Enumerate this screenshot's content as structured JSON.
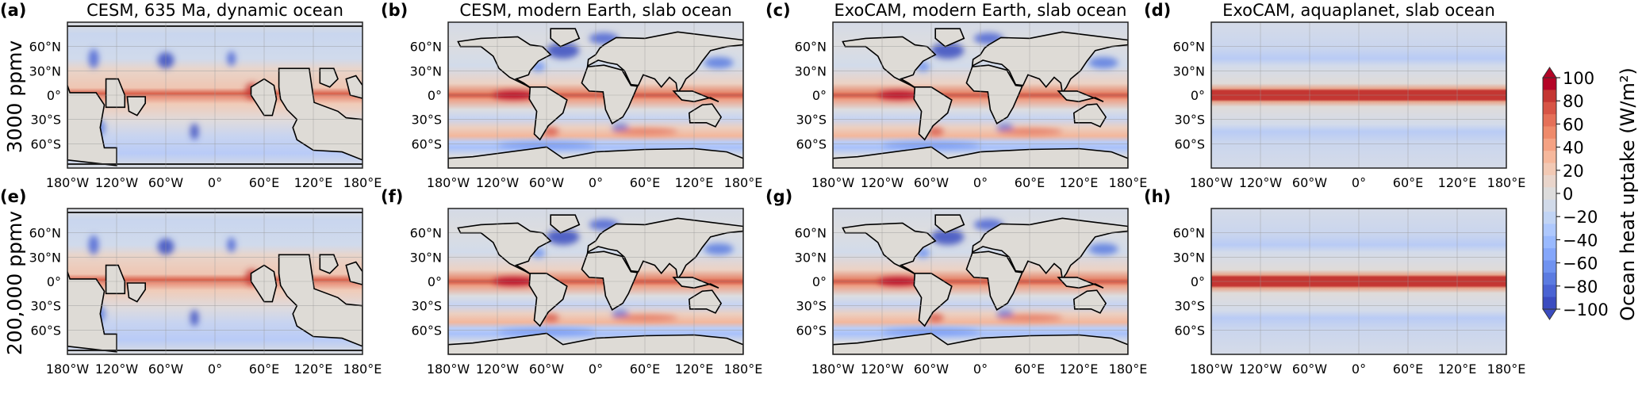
{
  "chart_data": {
    "type": "heatmap",
    "description_kind": "map panels",
    "rows": [
      {
        "label": "3000 ppmv"
      },
      {
        "label": "200,000 ppmv"
      }
    ],
    "panels": [
      {
        "tag": "(a)",
        "title": "CESM, 635 Ma, dynamic ocean",
        "geography": "paleo",
        "field": "dynamic"
      },
      {
        "tag": "(b)",
        "title": "CESM, modern Earth, slab ocean",
        "geography": "modern",
        "field": "modern"
      },
      {
        "tag": "(c)",
        "title": "ExoCAM, modern Earth, slab ocean",
        "geography": "modern",
        "field": "modern"
      },
      {
        "tag": "(d)",
        "title": "ExoCAM, aquaplanet, slab ocean",
        "geography": "none",
        "field": "aqua"
      },
      {
        "tag": "(e)",
        "title": "",
        "geography": "paleo",
        "field": "dynamic"
      },
      {
        "tag": "(f)",
        "title": "",
        "geography": "modern",
        "field": "modern"
      },
      {
        "tag": "(g)",
        "title": "",
        "geography": "modern",
        "field": "modern"
      },
      {
        "tag": "(h)",
        "title": "",
        "geography": "none",
        "field": "aqua"
      }
    ],
    "xticks": [
      -180,
      -120,
      -60,
      0,
      60,
      120,
      180
    ],
    "xticklabels": [
      "180°W",
      "120°W",
      "60°W",
      "0°",
      "60°E",
      "120°E",
      "180°E"
    ],
    "yticks": [
      60,
      30,
      0,
      -30,
      -60
    ],
    "yticklabels": [
      "60°N",
      "30°N",
      "0°",
      "30°S",
      "60°S"
    ],
    "xlim": [
      -180,
      180
    ],
    "ylim": [
      -90,
      90
    ],
    "grid": true,
    "colorbar": {
      "label": "Ocean heat uptake (W/m²)",
      "range": [
        -100,
        100
      ],
      "ticks": [
        100,
        80,
        60,
        40,
        20,
        0,
        -20,
        -40,
        -60,
        -80,
        -100
      ],
      "ticklabels": [
        "100",
        "80",
        "60",
        "40",
        "20",
        "0",
        "−20",
        "−40",
        "−60",
        "−80",
        "−100"
      ],
      "colormap": "coolwarm",
      "extend": "both",
      "colors": [
        "#3b4cc0",
        "#4a63d3",
        "#5b7be1",
        "#6f92f0",
        "#84a6fa",
        "#99b9fe",
        "#aec8fd",
        "#c1d4f4",
        "#d1dae9",
        "#dddcdc",
        "#e9d5cb",
        "#f2c9b4",
        "#f6b89c",
        "#f5a283",
        "#ef8a6a",
        "#e57058",
        "#d75445",
        "#c43632",
        "#b40426"
      ]
    }
  }
}
